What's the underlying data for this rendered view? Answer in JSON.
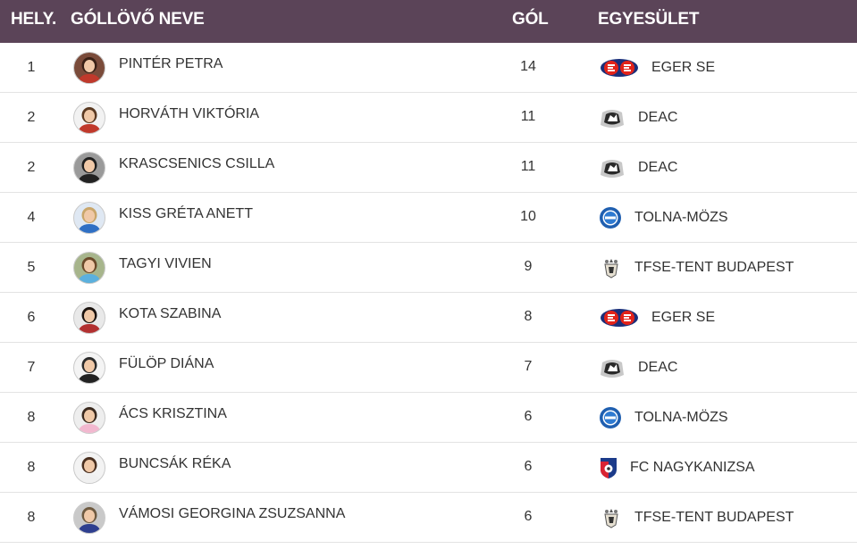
{
  "header": {
    "rank": "HELY.",
    "name": "GÓLLÖVŐ NEVE",
    "goals": "GÓL",
    "club": "EGYESÜLET"
  },
  "colors": {
    "header_bg": "#5b4458",
    "header_text": "#ffffff",
    "row_divider": "#e3e3e3",
    "text": "#333333"
  },
  "rows": [
    {
      "rank": "1",
      "name": "PINTÉR PETRA",
      "goals": "14",
      "club": "EGER SE",
      "logo": "eger-se-logo",
      "avatar": "player-photo"
    },
    {
      "rank": "2",
      "name": "HORVÁTH VIKTÓRIA",
      "goals": "11",
      "club": "DEAC",
      "logo": "deac-logo",
      "avatar": "player-photo"
    },
    {
      "rank": "2",
      "name": "KRASCSENICS CSILLA",
      "goals": "11",
      "club": "DEAC",
      "logo": "deac-logo",
      "avatar": "player-photo"
    },
    {
      "rank": "4",
      "name": "KISS GRÉTA ANETT",
      "goals": "10",
      "club": "TOLNA-MÖZS",
      "logo": "tolna-mozs-logo",
      "avatar": "player-photo"
    },
    {
      "rank": "5",
      "name": "TAGYI VIVIEN",
      "goals": "9",
      "club": "TFSE-TENT BUDAPEST",
      "logo": "tfse-logo",
      "avatar": "player-photo"
    },
    {
      "rank": "6",
      "name": "KOTA SZABINA",
      "goals": "8",
      "club": "EGER SE",
      "logo": "eger-se-logo",
      "avatar": "player-photo"
    },
    {
      "rank": "7",
      "name": "FÜLÖP DIÁNA",
      "goals": "7",
      "club": "DEAC",
      "logo": "deac-logo",
      "avatar": "player-photo"
    },
    {
      "rank": "8",
      "name": "ÁCS KRISZTINA",
      "goals": "6",
      "club": "TOLNA-MÖZS",
      "logo": "tolna-mozs-logo",
      "avatar": "player-photo"
    },
    {
      "rank": "8",
      "name": "BUNCSÁK RÉKA",
      "goals": "6",
      "club": "FC NAGYKANIZSA",
      "logo": "fc-nagykanizsa-logo",
      "avatar": "player-photo"
    },
    {
      "rank": "8",
      "name": "VÁMOSI GEORGINA ZSUZSANNA",
      "goals": "6",
      "club": "TFSE-TENT BUDAPEST",
      "logo": "tfse-logo",
      "avatar": "player-photo"
    }
  ]
}
